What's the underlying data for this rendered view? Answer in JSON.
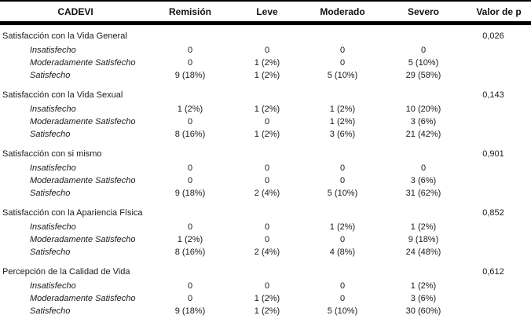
{
  "table": {
    "columns": [
      "CADEVI",
      "Remisión",
      "Leve",
      "Moderado",
      "Severo",
      "Valor de p"
    ],
    "sections": [
      {
        "title": "Satisfacción con la Vida General",
        "p_value": "0,026",
        "rows": [
          {
            "label": "Insatisfecho",
            "values": [
              "0",
              "0",
              "0",
              "0"
            ]
          },
          {
            "label": "Moderadamente Satisfecho",
            "values": [
              "0",
              "1 (2%)",
              "0",
              "5 (10%)"
            ]
          },
          {
            "label": "Satisfecho",
            "values": [
              "9 (18%)",
              "1 (2%)",
              "5 (10%)",
              "29 (58%)"
            ]
          }
        ]
      },
      {
        "title": "Satisfacción con la Vida Sexual",
        "p_value": "0,143",
        "rows": [
          {
            "label": "Insatisfecho",
            "values": [
              "1 (2%)",
              "1 (2%)",
              "1 (2%)",
              "10 (20%)"
            ]
          },
          {
            "label": "Moderadamente Satisfecho",
            "values": [
              "0",
              "0",
              "1 (2%)",
              "3 (6%)"
            ]
          },
          {
            "label": "Satisfecho",
            "values": [
              "8 (16%)",
              "1 (2%)",
              "3 (6%)",
              "21 (42%)"
            ]
          }
        ]
      },
      {
        "title": "Satisfacción con si mismo",
        "p_value": "0,901",
        "rows": [
          {
            "label": "Insatisfecho",
            "values": [
              "0",
              "0",
              "0",
              "0"
            ]
          },
          {
            "label": "Moderadamente Satisfecho",
            "values": [
              "0",
              "0",
              "0",
              "3 (6%)"
            ]
          },
          {
            "label": "Satisfecho",
            "values": [
              "9 (18%)",
              "2 (4%)",
              "5 (10%)",
              "31 (62%)"
            ]
          }
        ]
      },
      {
        "title": "Satisfacción con la Apariencia Física",
        "p_value": "0,852",
        "rows": [
          {
            "label": "Insatisfecho",
            "values": [
              "0",
              "0",
              "1 (2%)",
              "1 (2%)"
            ]
          },
          {
            "label": "Moderadamente Satisfecho",
            "values": [
              "1 (2%)",
              "0",
              "0",
              "9 (18%)"
            ]
          },
          {
            "label": "Satisfecho",
            "values": [
              "8 (16%)",
              "2 (4%)",
              "4 (8%)",
              "24 (48%)"
            ]
          }
        ]
      },
      {
        "title": "Percepción de la Calidad de Vida",
        "p_value": "0,612",
        "rows": [
          {
            "label": "Insatisfecho",
            "values": [
              "0",
              "0",
              "0",
              "1 (2%)"
            ]
          },
          {
            "label": "Moderadamente Satisfecho",
            "values": [
              "0",
              "1 (2%)",
              "0",
              "3 (6%)"
            ]
          },
          {
            "label": "Satisfecho",
            "values": [
              "9 (18%)",
              "1 (2%)",
              "5 (10%)",
              "30 (60%)"
            ]
          }
        ]
      }
    ]
  },
  "colors": {
    "text": "#1a1a1a",
    "border": "#000000",
    "background": "#ffffff"
  }
}
